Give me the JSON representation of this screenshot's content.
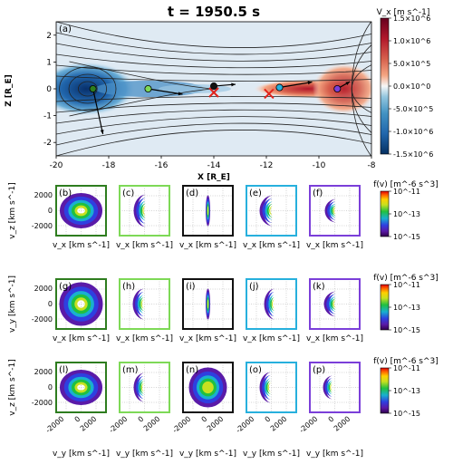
{
  "figure": {
    "title": "t = 1950.5 s"
  },
  "chart_data": [
    {
      "type": "heatmap",
      "panel_label": "(a)",
      "xlabel": "X [R_E]",
      "ylabel": "Z [R_E]",
      "xlim": [
        -20,
        -8
      ],
      "ylim": [
        -2.5,
        2.5
      ],
      "x_ticks": [
        "-20",
        "-18",
        "-16",
        "-14",
        "-12",
        "-10",
        "-8"
      ],
      "x_tick_values": [
        -20,
        -18,
        -16,
        -14,
        -12,
        -10,
        -8
      ],
      "y_ticks": [
        "2",
        "1",
        "0",
        "-1",
        "-2"
      ],
      "y_tick_values": [
        2,
        1,
        0,
        -1,
        -2
      ],
      "colorbar": {
        "label": "V_x [m s^-1]",
        "ticks": [
          "1.5×10^6",
          "1.0×10^6",
          "5.0×10^5",
          "0.0×10^0",
          "-5.0×10^5",
          "-1.0×10^6",
          "-1.5×10^6"
        ],
        "tick_values": [
          1500000.0,
          1000000.0,
          500000.0,
          0,
          -500000.0,
          -1000000.0,
          -1500000.0
        ],
        "range": [
          -1500000.0,
          1500000.0
        ],
        "colormap": "RdBu_r"
      },
      "x_points": [
        {
          "x": -14.0,
          "z": 0.0
        },
        {
          "x": -11.9,
          "z": -0.05
        }
      ],
      "markers": [
        {
          "panel": "b-g-l",
          "x": -18.6,
          "z": 0.0,
          "color": "#2e7d1f"
        },
        {
          "panel": "c-h-m",
          "x": -16.5,
          "z": 0.0,
          "color": "#7ed957"
        },
        {
          "panel": "d-i-n",
          "x": -14.0,
          "z": 0.1,
          "color": "#111111"
        },
        {
          "panel": "e-j-o",
          "x": -11.5,
          "z": 0.05,
          "color": "#27b0dd"
        },
        {
          "panel": "f-k-p",
          "x": -9.3,
          "z": 0.0,
          "color": "#7b3fd9"
        }
      ]
    }
  ],
  "grid": {
    "rows": [
      {
        "ylabel": "v_z [km s^-1]",
        "xlabel": "v_x [km s^-1]",
        "labels": [
          "(b)",
          "(c)",
          "(d)",
          "(e)",
          "(f)"
        ],
        "cbar_label": "f(v) [m^-6 s^3]"
      },
      {
        "ylabel": "v_y [km s^-1]",
        "xlabel": "v_x [km s^-1]",
        "labels": [
          "(g)",
          "(h)",
          "(i)",
          "(j)",
          "(k)"
        ],
        "cbar_label": "f(v) [m^-6 s^3]"
      },
      {
        "ylabel": "v_z [km s^-1]",
        "xlabel": "v_y [km s^-1]",
        "labels": [
          "(l)",
          "(m)",
          "(n)",
          "(o)",
          "(p)"
        ],
        "cbar_label": "f(v) [m^-6 s^3]"
      }
    ],
    "y_ticks": [
      "2000",
      "0",
      "-2000"
    ],
    "x_ticks": [
      "-2000",
      "0",
      "2000"
    ],
    "cbar_ticks": [
      "10^-11",
      "10^-13",
      "10^-15"
    ],
    "column_colors": [
      "#2e7d1f",
      "#7ed957",
      "#111111",
      "#27b0dd",
      "#7b3fd9"
    ]
  }
}
